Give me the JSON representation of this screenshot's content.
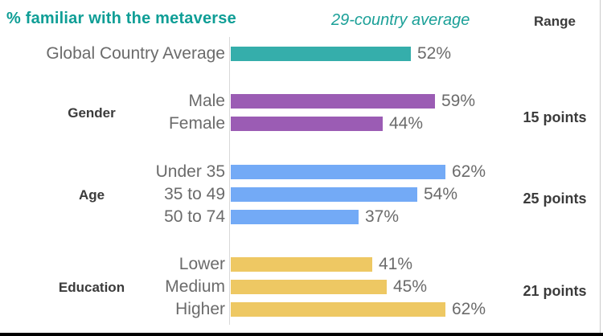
{
  "header": {
    "title": "% familiar with the metaverse",
    "subtitle": "29-country average",
    "range_label": "Range"
  },
  "colors": {
    "title_teal": "#0f9e96",
    "teal_bar": "#35aeab",
    "purple_bar": "#9b5cb4",
    "blue_bar": "#73aaf6",
    "yellow_bar": "#eec863",
    "label_gray": "#6b6b6b",
    "dark_text": "#3b3b3b",
    "axis_line": "#d9d9d9"
  },
  "chart_data": {
    "type": "bar",
    "orientation": "horizontal",
    "title": "% familiar with the metaverse",
    "subtitle": "29-country average",
    "range_column_header": "Range",
    "unit": "%",
    "xlim": [
      0,
      70
    ],
    "grid": false,
    "groups": [
      {
        "name": "",
        "color": "#35aeab",
        "range": "",
        "rows": [
          {
            "label": "Global Country Average",
            "value": 52,
            "value_label": "52%"
          }
        ]
      },
      {
        "name": "Gender",
        "color": "#9b5cb4",
        "range": "15 points",
        "rows": [
          {
            "label": "Male",
            "value": 59,
            "value_label": "59%"
          },
          {
            "label": "Female",
            "value": 44,
            "value_label": "44%"
          }
        ]
      },
      {
        "name": "Age",
        "color": "#73aaf6",
        "range": "25 points",
        "rows": [
          {
            "label": "Under 35",
            "value": 62,
            "value_label": "62%"
          },
          {
            "label": "35 to 49",
            "value": 54,
            "value_label": "54%"
          },
          {
            "label": "50 to 74",
            "value": 37,
            "value_label": "37%"
          }
        ]
      },
      {
        "name": "Education",
        "color": "#eec863",
        "range": "21 points",
        "rows": [
          {
            "label": "Lower",
            "value": 41,
            "value_label": "41%"
          },
          {
            "label": "Medium",
            "value": 45,
            "value_label": "45%"
          },
          {
            "label": "Higher",
            "value": 62,
            "value_label": "62%"
          }
        ]
      }
    ]
  }
}
